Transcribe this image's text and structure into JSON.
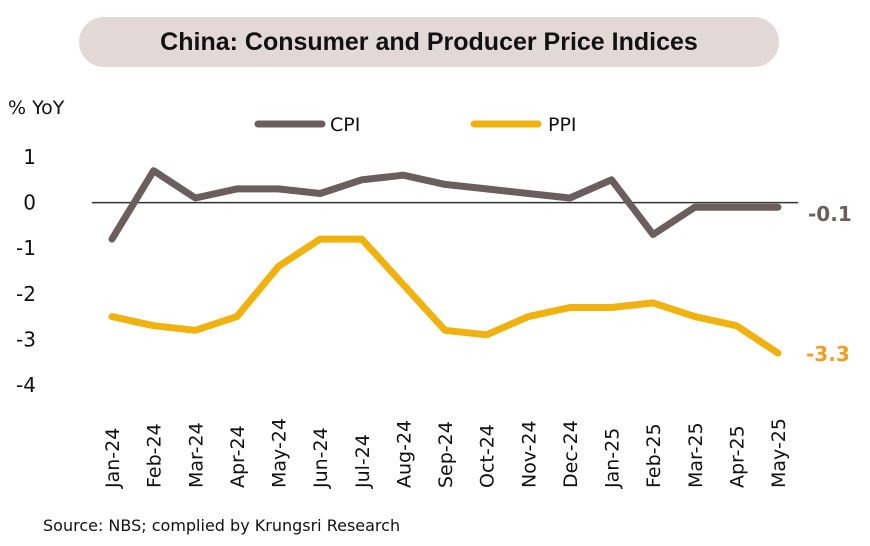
{
  "chart_data": {
    "type": "line",
    "title": "China: Consumer and Producer Price Indices",
    "ylabel": "% YoY",
    "xlabel": "",
    "ylim": [
      -4,
      1
    ],
    "yticks": [
      "1",
      "0",
      "-1",
      "-2",
      "-3",
      "-4"
    ],
    "ytick_values": [
      1,
      0,
      -1,
      -2,
      -3,
      -4
    ],
    "categories": [
      "Jan-24",
      "Feb-24",
      "Mar-24",
      "Apr-24",
      "May-24",
      "Jun-24",
      "Jul-24",
      "Aug-24",
      "Sep-24",
      "Oct-24",
      "Nov-24",
      "Dec-24",
      "Jan-25",
      "Feb-25",
      "Mar-25",
      "Apr-25",
      "May-25"
    ],
    "series": [
      {
        "name": "CPI",
        "color": "#6b5e5e",
        "values": [
          -0.8,
          0.7,
          0.1,
          0.3,
          0.3,
          0.2,
          0.5,
          0.6,
          0.4,
          0.3,
          0.2,
          0.1,
          0.5,
          -0.7,
          -0.1,
          -0.1,
          -0.1
        ],
        "end_label": "-0.1"
      },
      {
        "name": "PPI",
        "color": "#f0b20f",
        "values": [
          -2.5,
          -2.7,
          -2.8,
          -2.5,
          -1.4,
          -0.8,
          -0.8,
          -1.8,
          -2.8,
          -2.9,
          -2.5,
          -2.3,
          -2.3,
          -2.2,
          -2.5,
          -2.7,
          -3.3
        ],
        "end_label": "-3.3"
      }
    ],
    "legend": "top",
    "grid": false,
    "zero_line": true
  },
  "source": "Source: NBS; complied by Krungsri Research",
  "colors": {
    "title_bg": "#e2d8d8",
    "end_label_ppi": "#f0a020",
    "end_label_cpi": "#6b5e5e"
  }
}
